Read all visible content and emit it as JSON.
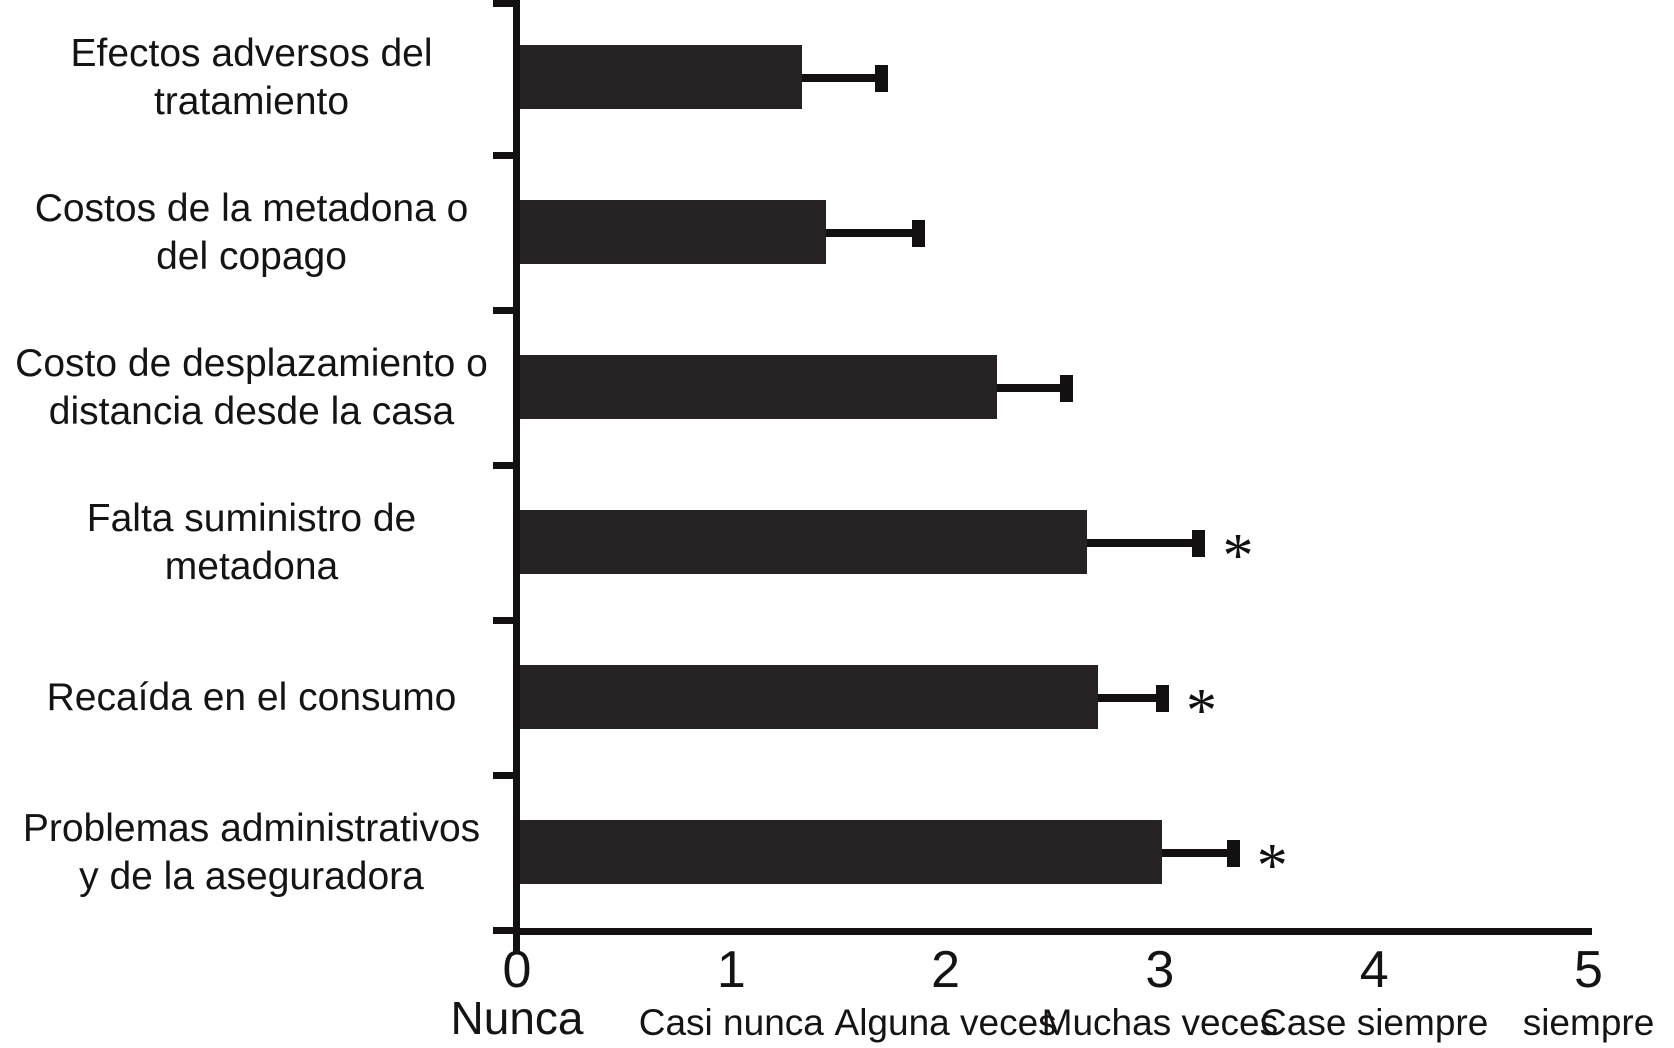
{
  "chart_data": {
    "type": "bar",
    "orientation": "horizontal",
    "title": "",
    "xlabel": "",
    "ylabel": "",
    "xlim": [
      0,
      5
    ],
    "grid": false,
    "legend": null,
    "bar_color": "#262223",
    "axis_color": "#121011",
    "significance_marker": "*",
    "x_ticks": [
      {
        "value": 0,
        "label": "0",
        "sublabel": "Nunca"
      },
      {
        "value": 1,
        "label": "1",
        "sublabel": "Casi nunca"
      },
      {
        "value": 2,
        "label": "2",
        "sublabel": "Alguna veces"
      },
      {
        "value": 3,
        "label": "3",
        "sublabel": "Muchas veces"
      },
      {
        "value": 4,
        "label": "4",
        "sublabel": "Case siempre"
      },
      {
        "value": 5,
        "label": "5",
        "sublabel": "siempre"
      }
    ],
    "categories": [
      {
        "label": "Efectos adversos del tratamiento",
        "lines": [
          "Efectos adversos del",
          "tratamiento"
        ],
        "value": 1.33,
        "error_plus": 0.37,
        "significant": false
      },
      {
        "label": "Costos de la metadona o del copago",
        "lines": [
          "Costos de la metadona o",
          "del copago"
        ],
        "value": 1.44,
        "error_plus": 0.43,
        "significant": false
      },
      {
        "label": "Costo de desplazamiento o distancia desde la casa",
        "lines": [
          "Costo de desplazamiento o",
          "distancia desde la casa"
        ],
        "value": 2.24,
        "error_plus": 0.32,
        "significant": false
      },
      {
        "label": "Falta suministro de metadona",
        "lines": [
          "Falta suministro de",
          "metadona"
        ],
        "value": 2.66,
        "error_plus": 0.52,
        "significant": true
      },
      {
        "label": "Recaída en el consumo",
        "lines": [
          "Recaída en el consumo"
        ],
        "value": 2.71,
        "error_plus": 0.3,
        "significant": true
      },
      {
        "label": "Problemas administrativos y de la aseguradora",
        "lines": [
          "Problemas administrativos",
          "y de la aseguradora"
        ],
        "value": 3.01,
        "error_plus": 0.33,
        "significant": true
      }
    ]
  }
}
